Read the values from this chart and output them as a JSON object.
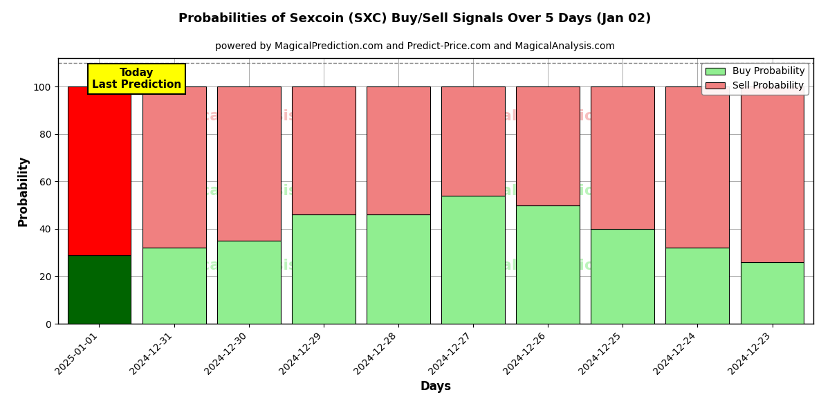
{
  "title": "Probabilities of Sexcoin (SXC) Buy/Sell Signals Over 5 Days (Jan 02)",
  "subtitle": "powered by MagicalPrediction.com and Predict-Price.com and MagicalAnalysis.com",
  "xlabel": "Days",
  "ylabel": "Probability",
  "categories": [
    "2025-01-01",
    "2024-12-31",
    "2024-12-30",
    "2024-12-29",
    "2024-12-28",
    "2024-12-27",
    "2024-12-26",
    "2024-12-25",
    "2024-12-24",
    "2024-12-23"
  ],
  "buy_values": [
    29,
    32,
    35,
    46,
    46,
    54,
    50,
    40,
    32,
    26
  ],
  "sell_values": [
    71,
    68,
    65,
    54,
    54,
    46,
    50,
    60,
    68,
    74
  ],
  "today_bar_index": 0,
  "today_buy_color": "#006400",
  "today_sell_color": "#ff0000",
  "buy_color": "#90ee90",
  "sell_color": "#f08080",
  "today_label_bg": "#ffff00",
  "ylim": [
    0,
    112
  ],
  "yticks": [
    0,
    20,
    40,
    60,
    80,
    100
  ],
  "dashed_line_y": 110,
  "legend_buy_label": "Buy Probability",
  "legend_sell_label": "Sell Probability",
  "background_color": "#ffffff",
  "grid_color": "#aaaaaa",
  "bar_width": 0.85
}
